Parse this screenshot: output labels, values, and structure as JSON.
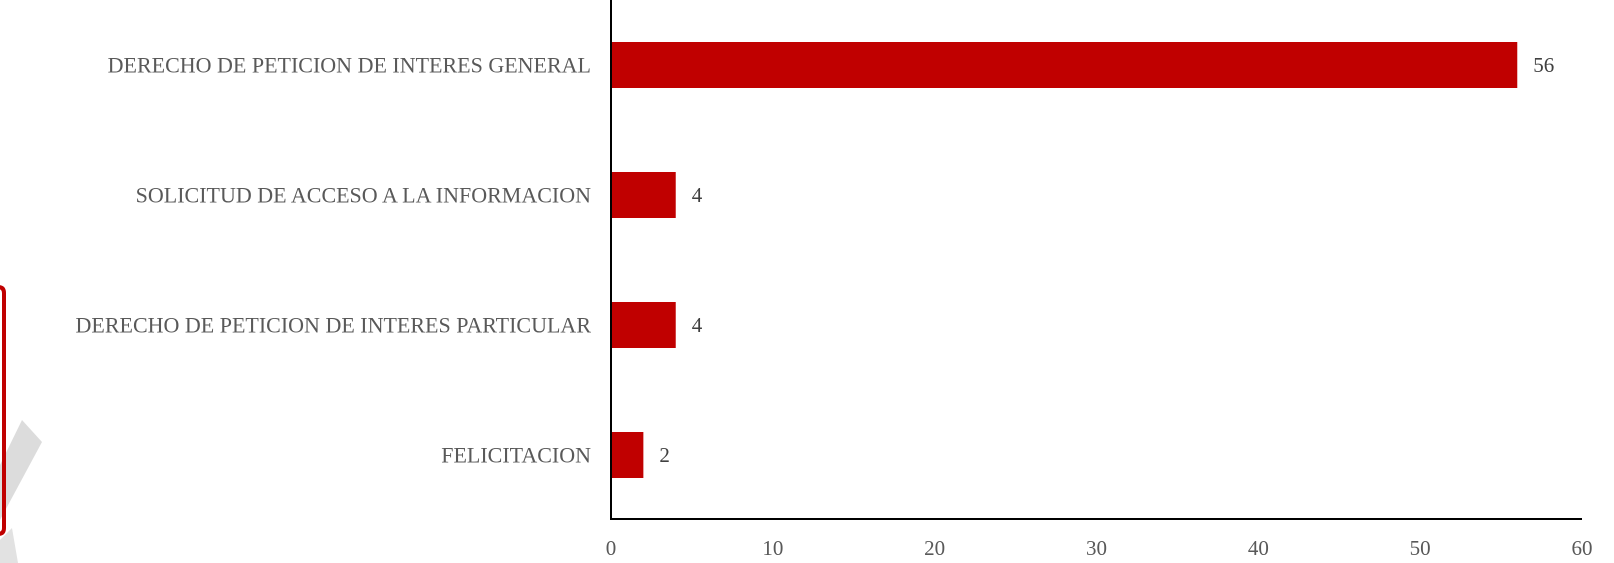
{
  "chart_data": {
    "type": "bar",
    "orientation": "horizontal",
    "categories": [
      "DERECHO DE PETICION DE INTERES GENERAL",
      "SOLICITUD DE ACCESO A LA INFORMACION",
      "DERECHO DE PETICION DE INTERES PARTICULAR",
      "FELICITACION"
    ],
    "values": [
      56,
      4,
      4,
      2
    ],
    "xlim": [
      0,
      60
    ],
    "xticks": [
      "0",
      "10",
      "20",
      "30",
      "40",
      "50",
      "60"
    ],
    "title": "",
    "xlabel": "",
    "ylabel": "",
    "grid": false,
    "legend": "none",
    "data_labels": true,
    "bar_color": "#c00000",
    "axis_color": "#000000",
    "text_color": "#595959"
  },
  "decorations": {
    "left_panel_border_color": "#c00000",
    "watermark_color": "#d9d9d9"
  }
}
